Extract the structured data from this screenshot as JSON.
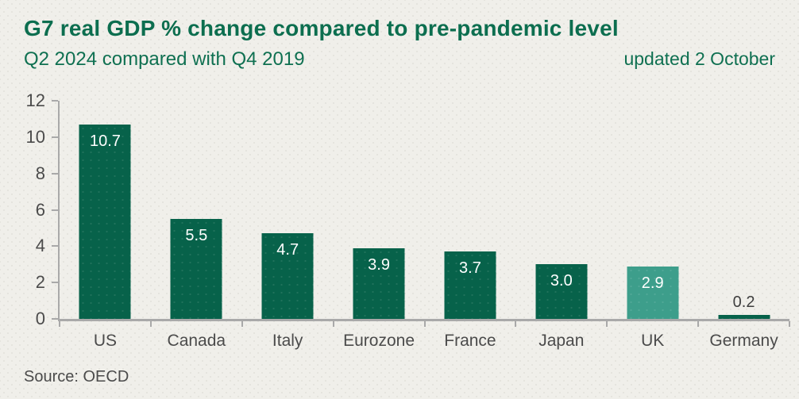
{
  "header": {
    "title": "G7 real GDP % change compared to pre-pandemic level",
    "subtitle": "Q2 2024 compared with Q4 2019",
    "updated": "updated 2 October"
  },
  "chart_data": {
    "type": "bar",
    "title": "G7 real GDP % change compared to pre-pandemic level",
    "subtitle": "Q2 2024 compared with Q4 2019",
    "categories": [
      "US",
      "Canada",
      "Italy",
      "Eurozone",
      "France",
      "Japan",
      "UK",
      "Germany"
    ],
    "values": [
      10.7,
      5.5,
      4.7,
      3.9,
      3.7,
      3.0,
      2.9,
      0.2
    ],
    "value_labels": [
      "10.7",
      "5.5",
      "4.7",
      "3.9",
      "3.7",
      "3.0",
      "2.9",
      "0.2"
    ],
    "bar_colors": [
      "#07624a",
      "#07624a",
      "#07624a",
      "#07624a",
      "#07624a",
      "#07624a",
      "#3d9e8b",
      "#07624a"
    ],
    "xlabel": "",
    "ylabel": "",
    "ylim": [
      0,
      12
    ],
    "yticks": [
      0,
      2,
      4,
      6,
      8,
      10,
      12
    ],
    "grid": false,
    "legend": false
  },
  "footer": {
    "source": "Source: OECD"
  },
  "colors": {
    "background": "#f0efea",
    "title": "#0c6e4f",
    "subtitle": "#0f7051",
    "bar_default": "#07624a",
    "bar_highlight": "#3d9e8b",
    "axis": "#a9a9a9",
    "tick_label": "#4b4b4b",
    "bar_label_inside": "#ffffff",
    "bar_label_outside": "#3f3f3f"
  }
}
